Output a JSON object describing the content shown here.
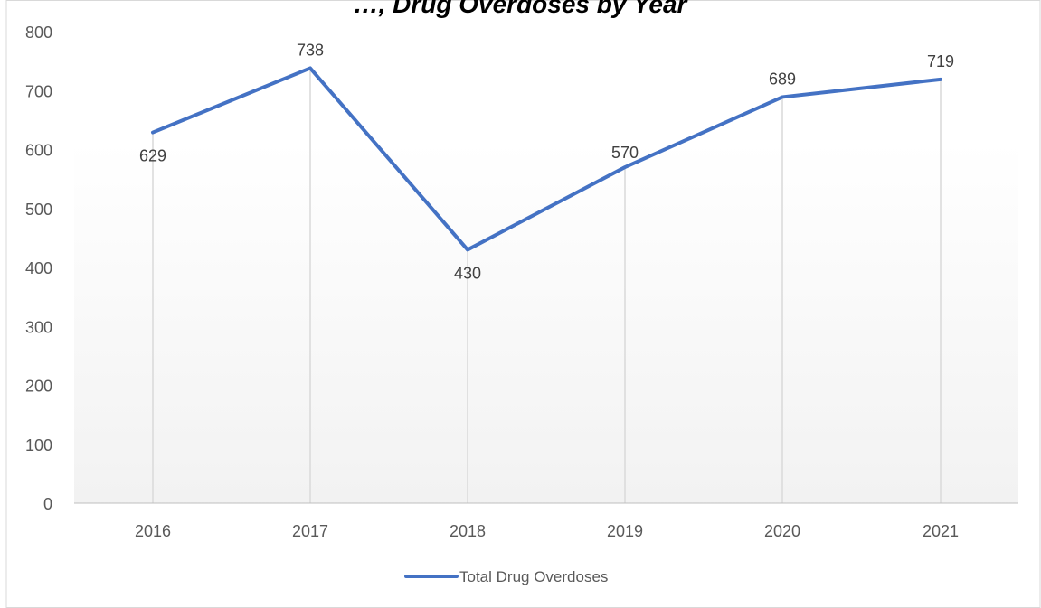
{
  "chart_data": {
    "type": "line",
    "title": "…, Drug Overdoses by Year",
    "categories": [
      "2016",
      "2017",
      "2018",
      "2019",
      "2020",
      "2021"
    ],
    "series": [
      {
        "name": "Total Drug Overdoses",
        "values": [
          629,
          738,
          430,
          570,
          689,
          719
        ],
        "color": "#4472c4"
      }
    ],
    "data_labels": [
      "629",
      "738",
      "430",
      "570",
      "689",
      "719"
    ],
    "y_ticks": [
      "0",
      "100",
      "200",
      "300",
      "400",
      "500",
      "600",
      "700",
      "800"
    ],
    "ylim": [
      0,
      800
    ],
    "xlabel": "",
    "ylabel": "",
    "legend_position": "bottom",
    "grid": false,
    "drop_lines": true,
    "colors": {
      "line": "#4472c4",
      "drop_line": "#d9d9d9",
      "background_fade": "#f2f2f2"
    }
  }
}
